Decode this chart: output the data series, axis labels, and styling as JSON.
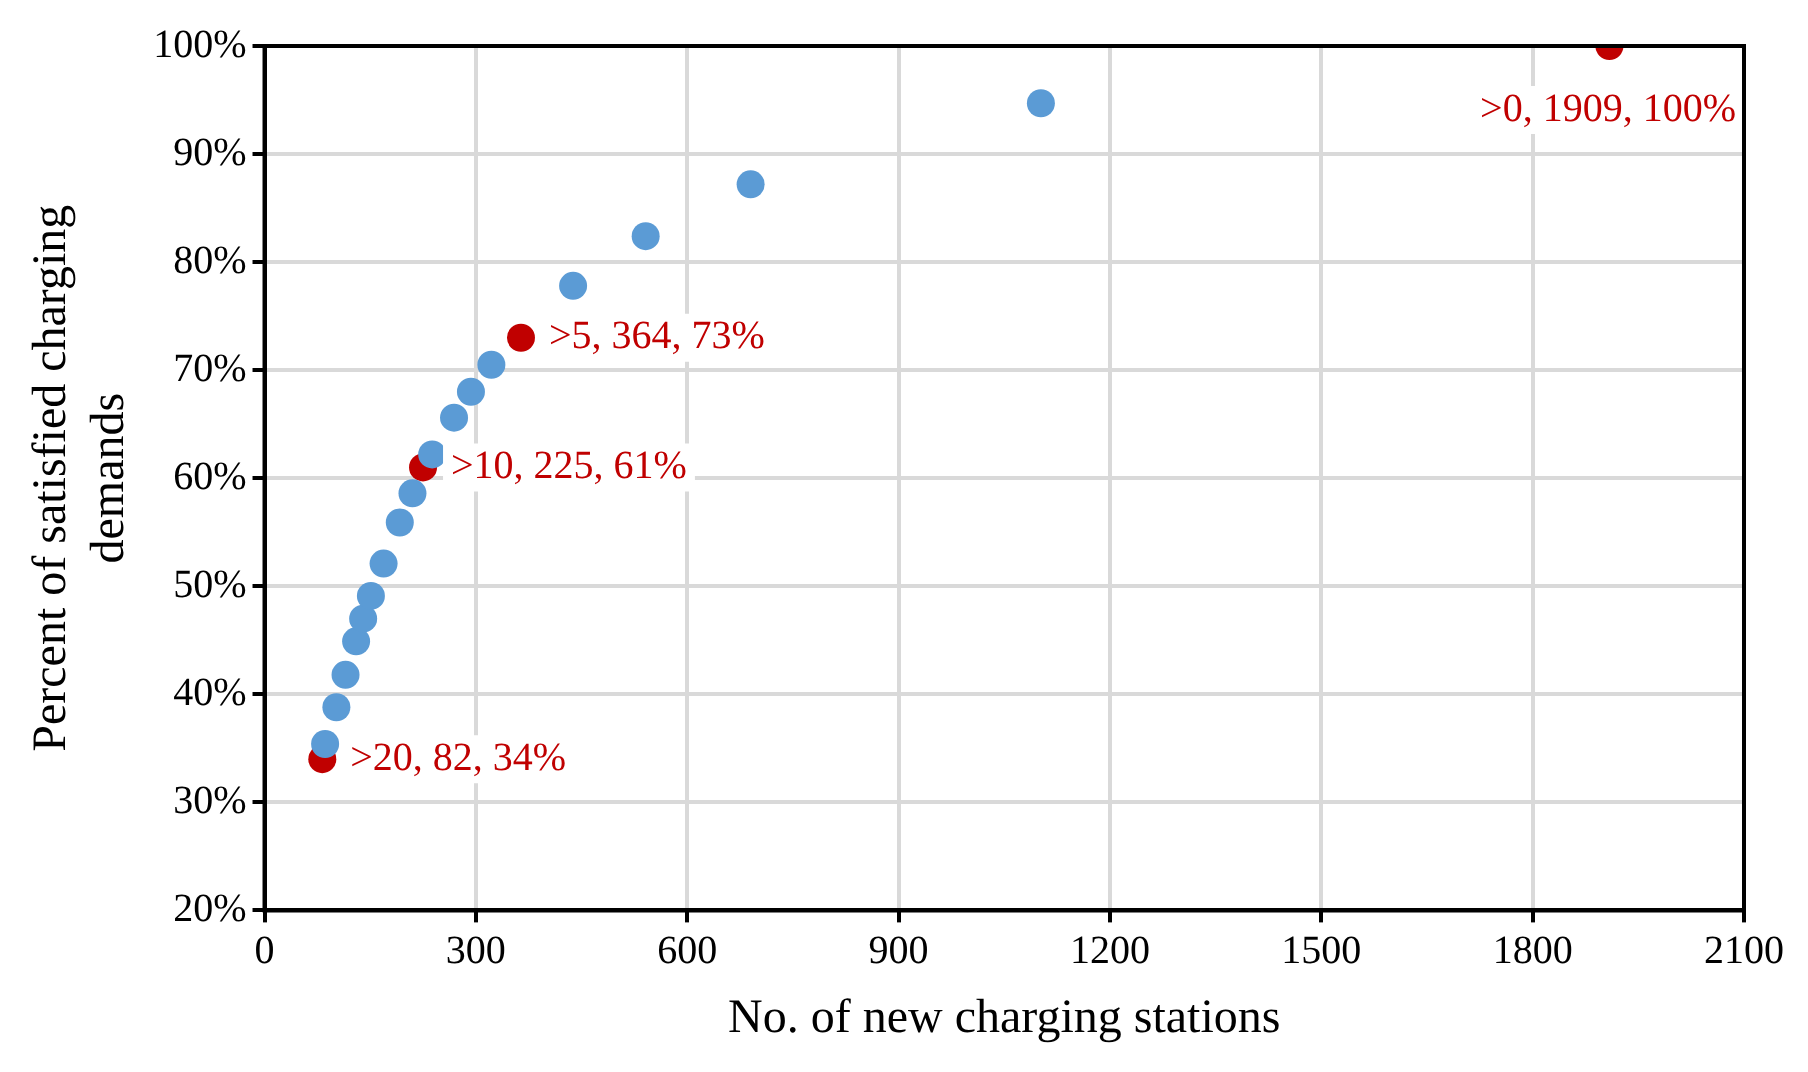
{
  "chart_data": {
    "type": "scatter",
    "xlabel": "No. of new charging stations",
    "ylabel": "Percent of satisfied charging demands",
    "series": [
      {
        "color": "#5b9bd5",
        "x": [
          86,
          102,
          115,
          130,
          140,
          151,
          169,
          192,
          210,
          238,
          269,
          293,
          322,
          438,
          541,
          690,
          1102
        ],
        "values": [
          35.4,
          38.8,
          41.8,
          44.9,
          47.0,
          49.1,
          52.1,
          55.9,
          58.6,
          62.2,
          65.6,
          68.0,
          70.5,
          77.8,
          82.4,
          87.2,
          94.7
        ]
      },
      {
        "color": "#c00000",
        "x": [
          82,
          225,
          364,
          1909
        ],
        "values": [
          34,
          61,
          73,
          100
        ]
      }
    ],
    "annotations": [
      {
        "text": ">20, 82, 34%",
        "x": 82,
        "y": 34
      },
      {
        "text": ">10, 225, 61%",
        "x": 225,
        "y": 61
      },
      {
        "text": ">5, 364, 73%",
        "x": 364,
        "y": 73
      },
      {
        "text": ">0, 1909, 100%",
        "x": 1909,
        "y": 100
      }
    ],
    "xlim": [
      0,
      2100
    ],
    "xticks": [
      0,
      300,
      600,
      900,
      1200,
      1500,
      1800,
      2100
    ],
    "ylim": [
      20,
      100
    ],
    "yticks": [
      {
        "value": 20,
        "label": "20%"
      },
      {
        "value": 30,
        "label": "30%"
      },
      {
        "value": 40,
        "label": "40%"
      },
      {
        "value": 50,
        "label": "50%"
      },
      {
        "value": 60,
        "label": "60%"
      },
      {
        "value": 70,
        "label": "70%"
      },
      {
        "value": 80,
        "label": "80%"
      },
      {
        "value": 90,
        "label": "90%"
      },
      {
        "value": 100,
        "label": "100%"
      }
    ],
    "grid": true,
    "marker": "circle",
    "legend": false
  }
}
